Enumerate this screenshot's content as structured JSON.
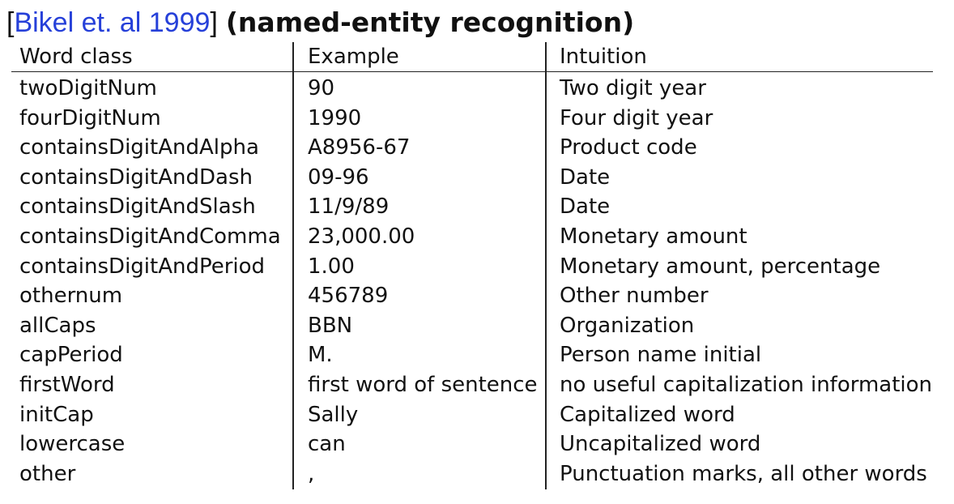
{
  "title": {
    "bracket_open": "[",
    "citation": "Bikel et. al 1999",
    "bracket_close": "]",
    "subtitle": "(named-entity recognition)"
  },
  "table": {
    "headers": [
      "Word class",
      "Example",
      "Intuition"
    ],
    "rows": [
      [
        "twoDigitNum",
        "90",
        "Two digit year"
      ],
      [
        "fourDigitNum",
        "1990",
        "Four digit year"
      ],
      [
        "containsDigitAndAlpha",
        "A8956-67",
        "Product code"
      ],
      [
        "containsDigitAndDash",
        "09-96",
        "Date"
      ],
      [
        "containsDigitAndSlash",
        "11/9/89",
        "Date"
      ],
      [
        "containsDigitAndComma",
        "23,000.00",
        "Monetary amount"
      ],
      [
        "containsDigitAndPeriod",
        "1.00",
        "Monetary amount, percentage"
      ],
      [
        "othernum",
        "456789",
        "Other number"
      ],
      [
        "allCaps",
        "BBN",
        "Organization"
      ],
      [
        "capPeriod",
        "M.",
        "Person name initial"
      ],
      [
        "firstWord",
        "first word of sentence",
        "no useful capitalization information"
      ],
      [
        "initCap",
        "Sally",
        "Capitalized word"
      ],
      [
        "lowercase",
        "can",
        "Uncapitalized word"
      ],
      [
        "other",
        ",",
        "Punctuation marks, all other words"
      ]
    ]
  },
  "colors": {
    "citation_link": "#2640d9",
    "text": "#111111",
    "rule": "#222222"
  }
}
